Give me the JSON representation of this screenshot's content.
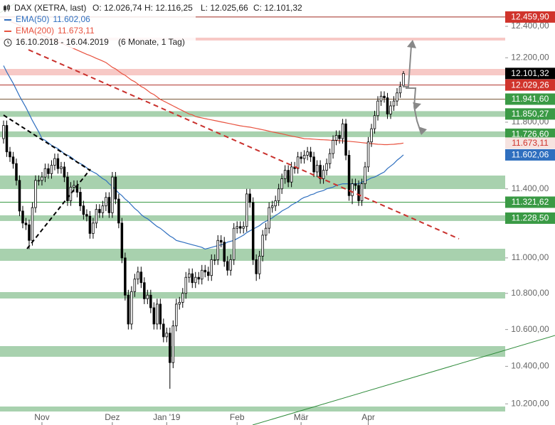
{
  "chart_data": {
    "type": "candlestick",
    "header": {
      "symbol": "DAX (XETRA, last)",
      "ohlc": [
        "O: 12.026,74",
        "H: 12.116,25",
        "L: 12.025,66",
        "C: 12.101,32"
      ],
      "range": "16.10.2018 - 16.04.2019",
      "period": "(6 Monate, 1 Tag)"
    },
    "log_scale": true,
    "ylim": [
      10156,
      12570
    ],
    "yticks": [
      {
        "value": 12400,
        "label": "12.400,00"
      },
      {
        "value": 12200,
        "label": "12.200,00"
      },
      {
        "value": 11800,
        "label": "11.800,00"
      },
      {
        "value": 11400,
        "label": "11.400,00"
      },
      {
        "value": 11000,
        "label": "11.000,00"
      },
      {
        "value": 10800,
        "label": "10.800,00"
      },
      {
        "value": 10600,
        "label": "10.600,00"
      },
      {
        "value": 10400,
        "label": "10.400,00"
      },
      {
        "value": 10200,
        "label": "10.200,00"
      }
    ],
    "up_color": "#ffffff",
    "down_color": "#000000",
    "wick_color": "#000000",
    "categories": [
      null,
      null,
      null,
      null,
      null,
      null,
      null,
      null,
      null,
      null,
      null,
      null,
      "Nov",
      null,
      null,
      null,
      null,
      null,
      null,
      null,
      null,
      null,
      null,
      null,
      null,
      null,
      null,
      null,
      null,
      null,
      null,
      null,
      null,
      null,
      "Dez",
      null,
      null,
      null,
      null,
      null,
      null,
      null,
      null,
      null,
      null,
      null,
      null,
      null,
      null,
      null,
      null,
      "Jan '19",
      null,
      null,
      null,
      null,
      null,
      null,
      null,
      null,
      null,
      null,
      null,
      null,
      null,
      null,
      null,
      null,
      null,
      null,
      null,
      null,
      null,
      "Feb",
      null,
      null,
      null,
      null,
      null,
      null,
      null,
      null,
      null,
      null,
      null,
      null,
      null,
      null,
      null,
      null,
      null,
      null,
      null,
      "Mär",
      null,
      null,
      null,
      null,
      null,
      null,
      null,
      null,
      null,
      null,
      null,
      null,
      null,
      null,
      null,
      null,
      null,
      null,
      null,
      null,
      "Apr",
      null,
      null,
      null,
      null,
      null,
      null,
      null,
      null,
      null,
      null,
      null
    ],
    "open": [
      11700,
      11780,
      11620,
      11590,
      11550,
      11450,
      11270,
      11200,
      11190,
      11100,
      11290,
      11450,
      11450,
      11470,
      11520,
      11490,
      11540,
      11580,
      11520,
      11530,
      11470,
      11330,
      11410,
      11420,
      11380,
      11300,
      11250,
      11240,
      11140,
      11200,
      11280,
      11260,
      11300,
      11350,
      11260,
      11470,
      11340,
      11200,
      11000,
      10790,
      10630,
      10810,
      10880,
      10920,
      10860,
      10770,
      10790,
      10720,
      10630,
      10740,
      10630,
      10560,
      10580,
      10420,
      10620,
      10740,
      10750,
      10800,
      10890,
      10910,
      10860,
      10890,
      10880,
      10930,
      10920,
      10900,
      10990,
      10990,
      11100,
      11090,
      10980,
      10930,
      10990,
      11170,
      11180,
      11170,
      11180,
      11370,
      11320,
      10990,
      10910,
      11010,
      11130,
      11170,
      11290,
      11300,
      11330,
      11400,
      11460,
      11510,
      11440,
      11530,
      11520,
      11590,
      11580,
      11600,
      11620,
      11590,
      11500,
      11540,
      11460,
      11510,
      11550,
      11610,
      11690,
      11720,
      11700,
      11790,
      11600,
      11360,
      11430,
      11420,
      11330,
      11430,
      11530,
      11680,
      11760,
      11840,
      11930,
      11960,
      11950,
      11850,
      11900,
      11930,
      11980,
      12026.74
    ],
    "high": [
      11810,
      11810,
      11650,
      11620,
      11580,
      11480,
      11300,
      11230,
      11220,
      11320,
      11480,
      11480,
      11500,
      11550,
      11550,
      11570,
      11610,
      11610,
      11560,
      11560,
      11500,
      11440,
      11450,
      11450,
      11410,
      11330,
      11280,
      11270,
      11230,
      11310,
      11310,
      11330,
      11380,
      11380,
      11500,
      11500,
      11370,
      11230,
      11030,
      10820,
      10840,
      10910,
      10950,
      10950,
      10890,
      10820,
      10820,
      10750,
      10770,
      10770,
      10660,
      10610,
      10610,
      10650,
      10770,
      10780,
      10830,
      10920,
      10940,
      10940,
      10920,
      10920,
      10960,
      10960,
      10950,
      11020,
      11020,
      11130,
      11130,
      11120,
      11010,
      11020,
      11200,
      11210,
      11210,
      11210,
      11400,
      11400,
      11350,
      11020,
      11040,
      11160,
      11200,
      11320,
      11330,
      11360,
      11430,
      11490,
      11540,
      11540,
      11560,
      11560,
      11620,
      11620,
      11630,
      11650,
      11650,
      11620,
      11570,
      11570,
      11540,
      11580,
      11640,
      11720,
      11750,
      11750,
      11820,
      11820,
      11630,
      11460,
      11460,
      11450,
      11460,
      11560,
      11710,
      11790,
      11870,
      11960,
      11990,
      11990,
      11980,
      11930,
      11960,
      12010,
      12050,
      12116.25
    ],
    "low": [
      11670,
      11590,
      11560,
      11520,
      11420,
      11240,
      11170,
      11160,
      11050,
      11070,
      11260,
      11420,
      11420,
      11440,
      11460,
      11460,
      11510,
      11490,
      11490,
      11440,
      11300,
      11300,
      11380,
      11350,
      11270,
      11220,
      11210,
      11110,
      11110,
      11170,
      11230,
      11230,
      11270,
      11230,
      11230,
      11310,
      11170,
      10970,
      10760,
      10600,
      10600,
      10780,
      10850,
      10830,
      10740,
      10740,
      10690,
      10600,
      10600,
      10600,
      10530,
      10530,
      10280,
      10390,
      10590,
      10710,
      10720,
      10770,
      10860,
      10830,
      10830,
      10850,
      10850,
      10890,
      10870,
      10870,
      10960,
      10960,
      11060,
      10950,
      10900,
      10900,
      10960,
      11140,
      11140,
      11140,
      11150,
      11290,
      10960,
      10870,
      10880,
      10980,
      11100,
      11140,
      11260,
      11270,
      11300,
      11370,
      11430,
      11410,
      11410,
      11490,
      11490,
      11550,
      11550,
      11570,
      11560,
      11470,
      11470,
      11430,
      11430,
      11480,
      11520,
      11580,
      11660,
      11670,
      11670,
      11570,
      11330,
      11310,
      11390,
      11300,
      11300,
      11400,
      11500,
      11650,
      11730,
      11810,
      11900,
      11920,
      11820,
      11820,
      11870,
      11900,
      11950,
      12025.66
    ],
    "close": [
      11780,
      11620,
      11590,
      11550,
      11450,
      11270,
      11200,
      11190,
      11100,
      11290,
      11450,
      11450,
      11470,
      11520,
      11490,
      11540,
      11580,
      11520,
      11530,
      11470,
      11330,
      11410,
      11420,
      11380,
      11300,
      11250,
      11240,
      11140,
      11200,
      11280,
      11260,
      11300,
      11350,
      11260,
      11470,
      11340,
      11200,
      11000,
      10790,
      10630,
      10810,
      10880,
      10920,
      10860,
      10770,
      10790,
      10720,
      10630,
      10740,
      10630,
      10560,
      10580,
      10420,
      10620,
      10740,
      10750,
      10800,
      10890,
      10910,
      10860,
      10890,
      10880,
      10930,
      10920,
      10900,
      10990,
      10990,
      11100,
      11090,
      10980,
      10930,
      10990,
      11170,
      11180,
      11170,
      11180,
      11370,
      11320,
      10990,
      10910,
      11010,
      11130,
      11170,
      11290,
      11300,
      11330,
      11400,
      11460,
      11510,
      11440,
      11530,
      11520,
      11590,
      11580,
      11600,
      11620,
      11590,
      11500,
      11540,
      11460,
      11510,
      11550,
      11610,
      11690,
      11720,
      11700,
      11790,
      11600,
      11360,
      11430,
      11420,
      11330,
      11430,
      11530,
      11680,
      11760,
      11840,
      11930,
      11960,
      11950,
      11850,
      11900,
      11930,
      11980,
      12020,
      12101.32
    ],
    "series": [
      {
        "name": "EMA(50)",
        "last_label": "11.602,06",
        "color": "#2f6fbf",
        "label_fill": "#2f6fbf",
        "label_text": "#ffffff",
        "values": [
          12150,
          12110,
          12075,
          12040,
          12000,
          11960,
          11925,
          11890,
          11850,
          11810,
          11775,
          11740,
          11700,
          11690,
          11675,
          11660,
          11650,
          11640,
          11625,
          11610,
          11600,
          11590,
          11575,
          11560,
          11550,
          11540,
          11525,
          11510,
          11500,
          11490,
          11475,
          11460,
          11450,
          11430,
          11415,
          11395,
          11375,
          11360,
          11340,
          11325,
          11305,
          11285,
          11270,
          11250,
          11235,
          11225,
          11210,
          11195,
          11180,
          11170,
          11155,
          11140,
          11125,
          11115,
          11100,
          11095,
          11090,
          11085,
          11080,
          11075,
          11070,
          11065,
          11060,
          11050,
          11055,
          11060,
          11065,
          11070,
          11075,
          11080,
          11090,
          11095,
          11100,
          11110,
          11120,
          11130,
          11145,
          11155,
          11165,
          11175,
          11185,
          11200,
          11210,
          11220,
          11230,
          11245,
          11255,
          11270,
          11280,
          11290,
          11305,
          11315,
          11325,
          11340,
          11350,
          11355,
          11365,
          11370,
          11380,
          11385,
          11390,
          11400,
          11405,
          11410,
          11420,
          11425,
          11430,
          11430,
          11430,
          11430,
          11430,
          11430,
          11440,
          11445,
          11455,
          11465,
          11470,
          11480,
          11490,
          11500,
          11520,
          11535,
          11550,
          11570,
          11585,
          11602.06
        ]
      },
      {
        "name": "EMA(200)",
        "last_label": "11.673,11",
        "color": "#e8523f",
        "label_fill": "#f6e3e0",
        "label_text": "#d0342c",
        "values": [
          12450,
          12440,
          12432,
          12424,
          12415,
          12406,
          12398,
          12389,
          12380,
          12371,
          12362,
          12354,
          12345,
          12336,
          12328,
          12319,
          12310,
          12301,
          12292,
          12284,
          12275,
          12266,
          12258,
          12249,
          12240,
          12231,
          12222,
          12214,
          12205,
          12196,
          12188,
          12179,
          12170,
          12155,
          12140,
          12130,
          12115,
          12100,
          12090,
          12075,
          12060,
          12050,
          12035,
          12020,
          12010,
          11995,
          11980,
          11970,
          11955,
          11940,
          11930,
          11920,
          11910,
          11900,
          11890,
          11880,
          11870,
          11860,
          11850,
          11845,
          11835,
          11830,
          11826,
          11822,
          11818,
          11814,
          11810,
          11806,
          11802,
          11798,
          11794,
          11790,
          11786,
          11782,
          11778,
          11775,
          11772,
          11770,
          11766,
          11762,
          11758,
          11754,
          11750,
          11745,
          11741,
          11737,
          11733,
          11729,
          11725,
          11720,
          11716,
          11712,
          11708,
          11704,
          11700,
          11699,
          11698,
          11697,
          11695,
          11694,
          11693,
          11692,
          11691,
          11690,
          11689,
          11688,
          11686,
          11685,
          11684,
          11682,
          11680,
          11678,
          11676,
          11674,
          11672,
          11670,
          11668,
          11666,
          11665,
          11664,
          11664,
          11665,
          11666,
          11668,
          11670,
          11673.11
        ]
      }
    ],
    "levels": [
      {
        "value": 12459.9,
        "label": "12.459,90",
        "style": "line",
        "line_color": "#a02a22",
        "fill": "#d0342c",
        "text": "#ffffff"
      },
      {
        "value": 12101.32,
        "label": "12.101,32",
        "style": "none",
        "line_color": "#000000",
        "fill": "#000000",
        "text": "#ffffff"
      },
      {
        "value": 12029.26,
        "label": "12.029,26",
        "style": "line",
        "line_color": "#b03028",
        "fill": "#d0342c",
        "text": "#ffffff"
      },
      {
        "value": 11941.6,
        "label": "11.941,60",
        "style": "line",
        "line_color": "#7a5a3a",
        "fill": "#3a9a45",
        "text": "#ffffff"
      },
      {
        "value": 11850.27,
        "label": "11.850,27",
        "style": "band",
        "line_color": "#a8d1ae",
        "fill": "#3a9a45",
        "text": "#ffffff"
      },
      {
        "value": 11726.6,
        "label": "11.726,60",
        "style": "band",
        "line_color": "#a8d1ae",
        "fill": "#3a9a45",
        "text": "#ffffff"
      },
      {
        "value": 11321.62,
        "label": "11.321,62",
        "style": "line",
        "line_color": "#3a9a45",
        "fill": "#3a9a45",
        "text": "#ffffff"
      },
      {
        "value": 11228.5,
        "label": "11.228,50",
        "style": "band",
        "line_color": "#a8d1ae",
        "fill": "#3a9a45",
        "text": "#ffffff"
      }
    ]
  }
}
